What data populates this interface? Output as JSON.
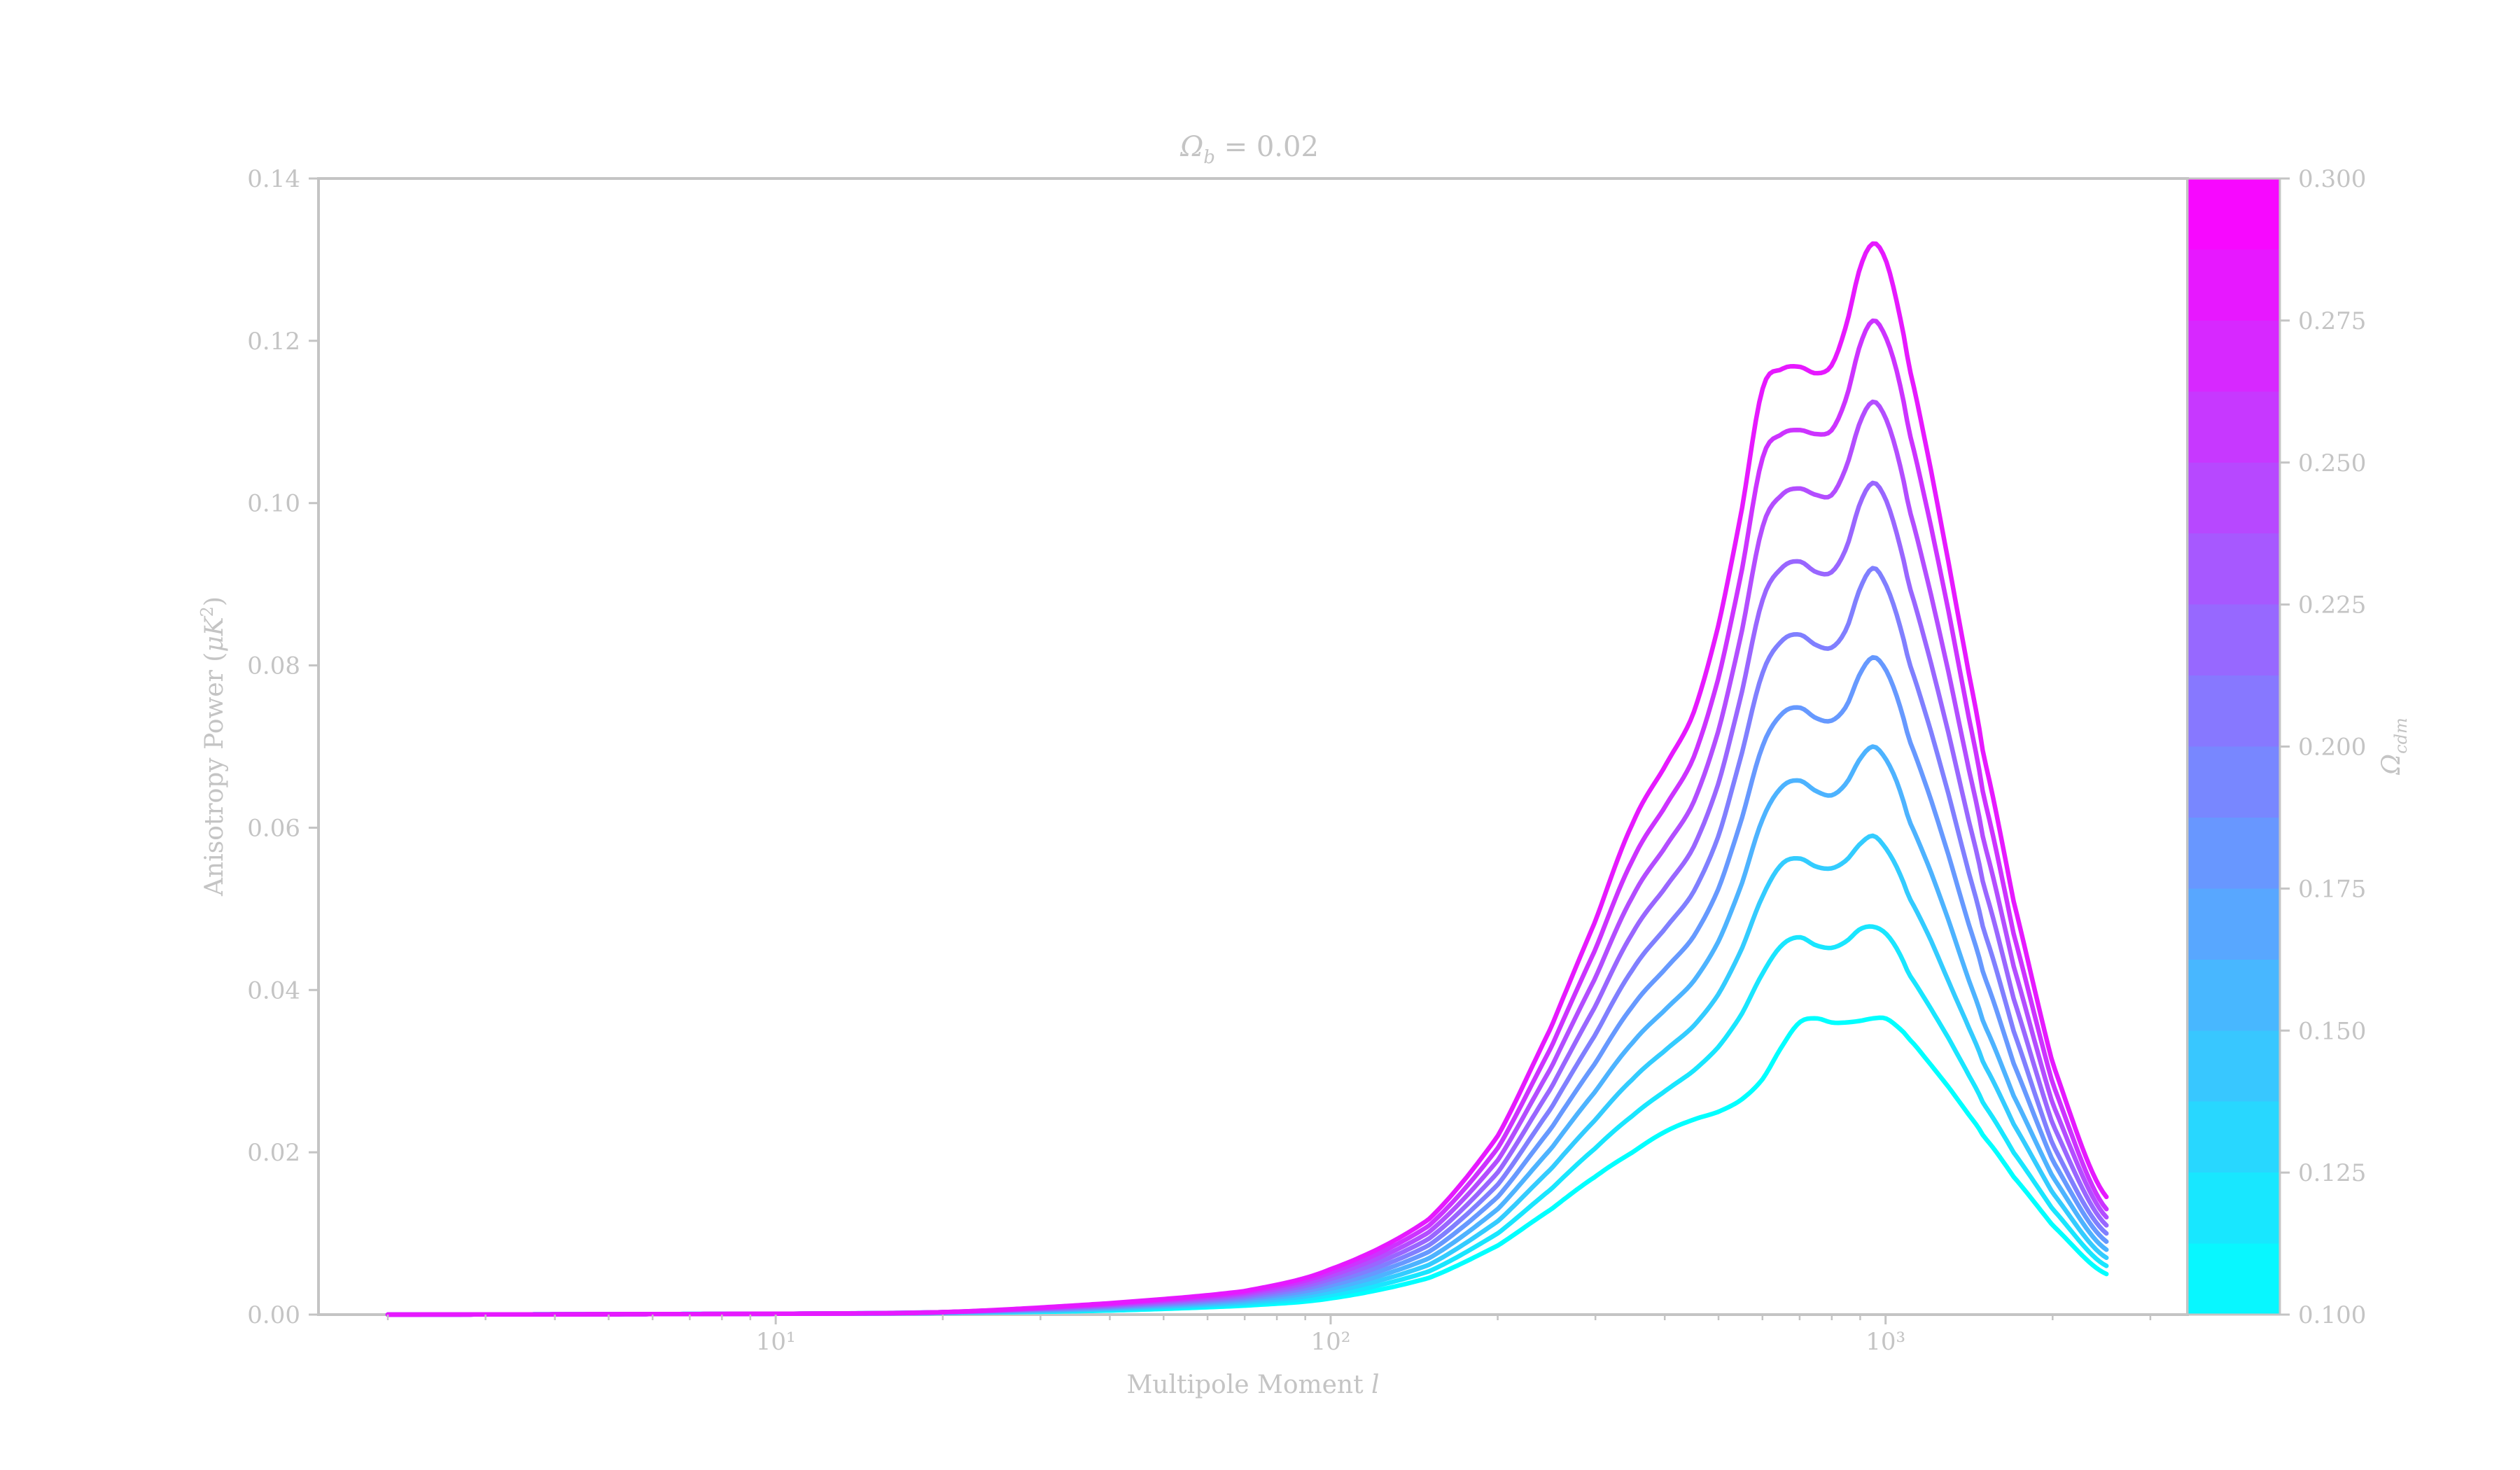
{
  "chart_data": {
    "type": "line",
    "title": "Ω_b = 0.02",
    "xlabel": "Multipole Moment l",
    "ylabel": "Anisotropy Power (μK²)",
    "xscale": "log",
    "xlim": [
      1.5,
      3500
    ],
    "ylim": [
      0,
      0.14
    ],
    "x_ticks": [
      {
        "value": 10,
        "label": "10¹"
      },
      {
        "value": 100,
        "label": "10²"
      },
      {
        "value": 1000,
        "label": "10³"
      }
    ],
    "y_ticks": [
      "0.00",
      "0.02",
      "0.04",
      "0.06",
      "0.08",
      "0.10",
      "0.12",
      "0.14"
    ],
    "grid": false,
    "colorbar": {
      "label": "Ω_cdm",
      "range": [
        0.1,
        0.3
      ],
      "ticks": [
        "0.100",
        "0.125",
        "0.150",
        "0.175",
        "0.200",
        "0.225",
        "0.250",
        "0.275",
        "0.300"
      ],
      "color_low": "#00ffff",
      "color_high": "#ff00ff"
    },
    "x": [
      2,
      10,
      20,
      40,
      70,
      100,
      150,
      200,
      250,
      300,
      350,
      400,
      450,
      500,
      550,
      600,
      650,
      700,
      750,
      800,
      850,
      900,
      950,
      1000,
      1050,
      1100,
      1200,
      1300,
      1400,
      1500,
      1700,
      2000,
      2500
    ],
    "series": [
      {
        "omega_cdm": 0.1,
        "values": [
          0.0,
          0.0001,
          0.0002,
          0.0005,
          0.0011,
          0.002,
          0.0045,
          0.0085,
          0.013,
          0.017,
          0.02,
          0.0225,
          0.024,
          0.025,
          0.0265,
          0.029,
          0.033,
          0.036,
          0.0365,
          0.036,
          0.036,
          0.0362,
          0.0365,
          0.0365,
          0.0355,
          0.034,
          0.031,
          0.028,
          0.025,
          0.022,
          0.017,
          0.011,
          0.005
        ]
      },
      {
        "omega_cdm": 0.12,
        "values": [
          0.0,
          0.0001,
          0.0002,
          0.0006,
          0.0013,
          0.0024,
          0.0053,
          0.01,
          0.0155,
          0.0205,
          0.0245,
          0.0275,
          0.03,
          0.033,
          0.037,
          0.042,
          0.0455,
          0.0465,
          0.0455,
          0.0452,
          0.046,
          0.0475,
          0.0478,
          0.047,
          0.045,
          0.042,
          0.038,
          0.034,
          0.03,
          0.026,
          0.02,
          0.013,
          0.006
        ]
      },
      {
        "omega_cdm": 0.14,
        "values": [
          0.0,
          0.0001,
          0.0002,
          0.0007,
          0.0015,
          0.0028,
          0.0061,
          0.0115,
          0.018,
          0.024,
          0.029,
          0.0325,
          0.0355,
          0.0395,
          0.045,
          0.0515,
          0.0555,
          0.0562,
          0.0552,
          0.055,
          0.056,
          0.058,
          0.059,
          0.0575,
          0.055,
          0.0515,
          0.0465,
          0.041,
          0.036,
          0.031,
          0.0235,
          0.015,
          0.007
        ]
      },
      {
        "omega_cdm": 0.16,
        "values": [
          0.0,
          0.0001,
          0.0002,
          0.0008,
          0.0017,
          0.0032,
          0.0069,
          0.013,
          0.0205,
          0.0275,
          0.0335,
          0.0375,
          0.041,
          0.046,
          0.053,
          0.061,
          0.065,
          0.0658,
          0.0645,
          0.064,
          0.0655,
          0.0685,
          0.07,
          0.0685,
          0.0655,
          0.061,
          0.055,
          0.0485,
          0.042,
          0.036,
          0.027,
          0.017,
          0.008
        ]
      },
      {
        "omega_cdm": 0.18,
        "values": [
          0.0,
          0.0001,
          0.0003,
          0.0009,
          0.0019,
          0.0036,
          0.0077,
          0.0145,
          0.023,
          0.031,
          0.038,
          0.0425,
          0.0465,
          0.0525,
          0.061,
          0.07,
          0.074,
          0.0748,
          0.0735,
          0.0732,
          0.075,
          0.079,
          0.081,
          0.0795,
          0.076,
          0.071,
          0.064,
          0.0565,
          0.049,
          0.042,
          0.031,
          0.019,
          0.009
        ]
      },
      {
        "omega_cdm": 0.2,
        "values": [
          0.0,
          0.0001,
          0.0003,
          0.001,
          0.0021,
          0.004,
          0.0085,
          0.016,
          0.0255,
          0.0345,
          0.0425,
          0.0475,
          0.052,
          0.059,
          0.069,
          0.079,
          0.083,
          0.0838,
          0.0825,
          0.0822,
          0.0845,
          0.0895,
          0.092,
          0.09,
          0.086,
          0.0805,
          0.0725,
          0.064,
          0.0555,
          0.0475,
          0.035,
          0.021,
          0.01
        ]
      },
      {
        "omega_cdm": 0.22,
        "values": [
          0.0,
          0.0001,
          0.0003,
          0.0011,
          0.0023,
          0.0044,
          0.0093,
          0.0175,
          0.028,
          0.038,
          0.047,
          0.0525,
          0.0575,
          0.0655,
          0.0765,
          0.088,
          0.092,
          0.0928,
          0.0915,
          0.0915,
          0.0945,
          0.1,
          0.1025,
          0.1005,
          0.096,
          0.09,
          0.081,
          0.0715,
          0.062,
          0.053,
          0.039,
          0.0235,
          0.011
        ]
      },
      {
        "omega_cdm": 0.24,
        "values": [
          0.0,
          0.0001,
          0.0003,
          0.0012,
          0.0025,
          0.0048,
          0.0101,
          0.019,
          0.0305,
          0.0415,
          0.0515,
          0.0575,
          0.063,
          0.072,
          0.084,
          0.097,
          0.101,
          0.1018,
          0.101,
          0.101,
          0.1045,
          0.11,
          0.1125,
          0.1105,
          0.106,
          0.0995,
          0.0895,
          0.079,
          0.0685,
          0.0585,
          0.043,
          0.026,
          0.012
        ]
      },
      {
        "omega_cdm": 0.26,
        "values": [
          0.0,
          0.0001,
          0.0003,
          0.0013,
          0.0027,
          0.0052,
          0.0109,
          0.0205,
          0.033,
          0.045,
          0.056,
          0.0625,
          0.0685,
          0.0785,
          0.0915,
          0.1055,
          0.1085,
          0.109,
          0.1085,
          0.109,
          0.113,
          0.1195,
          0.1225,
          0.1205,
          0.116,
          0.109,
          0.098,
          0.0865,
          0.075,
          0.064,
          0.047,
          0.0285,
          0.013
        ]
      },
      {
        "omega_cdm": 0.28,
        "values": [
          0.0,
          0.0001,
          0.0003,
          0.0014,
          0.0029,
          0.0056,
          0.0117,
          0.022,
          0.0355,
          0.0485,
          0.0605,
          0.0675,
          0.074,
          0.085,
          0.099,
          0.114,
          0.1165,
          0.1168,
          0.116,
          0.117,
          0.122,
          0.129,
          0.132,
          0.13,
          0.1245,
          0.117,
          0.105,
          0.0925,
          0.0805,
          0.069,
          0.051,
          0.031,
          0.0145
        ]
      }
    ]
  }
}
